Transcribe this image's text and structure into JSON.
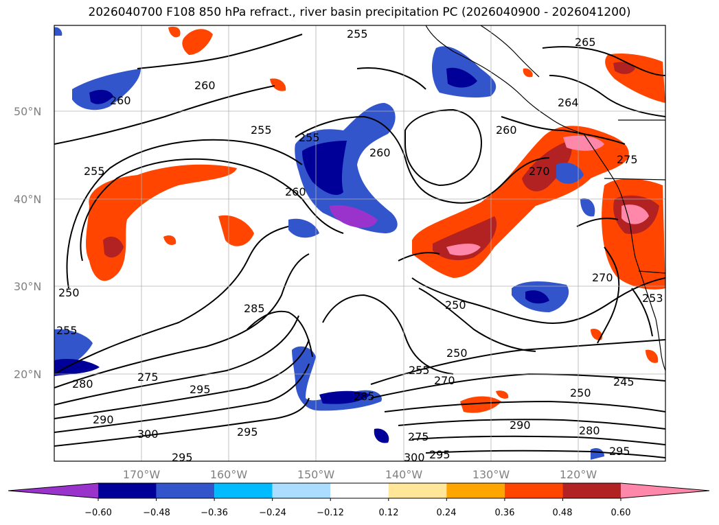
{
  "title": "2026040700 F108 850 hPa refract., river basin precipitation PC (2026040900 - 2026041200)",
  "map": {
    "lat_labels": [
      "50°N",
      "40°N",
      "30°N",
      "20°N"
    ],
    "lon_labels": [
      "170°W",
      "160°W",
      "150°W",
      "140°W",
      "130°W",
      "120°W"
    ],
    "contour_labels": [
      "255",
      "265",
      "260",
      "260",
      "255",
      "255",
      "260",
      "264",
      "260",
      "270",
      "275",
      "255",
      "260",
      "250",
      "255",
      "285",
      "275",
      "280",
      "295",
      "290",
      "300",
      "295",
      "295",
      "285",
      "255",
      "250",
      "270",
      "250",
      "245",
      "250",
      "280",
      "290",
      "295",
      "275",
      "300",
      "295",
      "270",
      "253"
    ],
    "colors": {
      "land_outline": "#000000",
      "grid": "#b0b0b0",
      "contour": "#000000"
    }
  },
  "colorbar": {
    "tick_labels": [
      "−0.60",
      "−0.48",
      "−0.36",
      "−0.24",
      "−0.12",
      "0.12",
      "0.24",
      "0.36",
      "0.48",
      "0.60"
    ],
    "colors": [
      "#9933cc",
      "#000099",
      "#3355cc",
      "#00bbff",
      "#aaddff",
      "#ffffff",
      "#ffe699",
      "#ffa500",
      "#ff4500",
      "#b22222",
      "#ff88aa"
    ]
  }
}
